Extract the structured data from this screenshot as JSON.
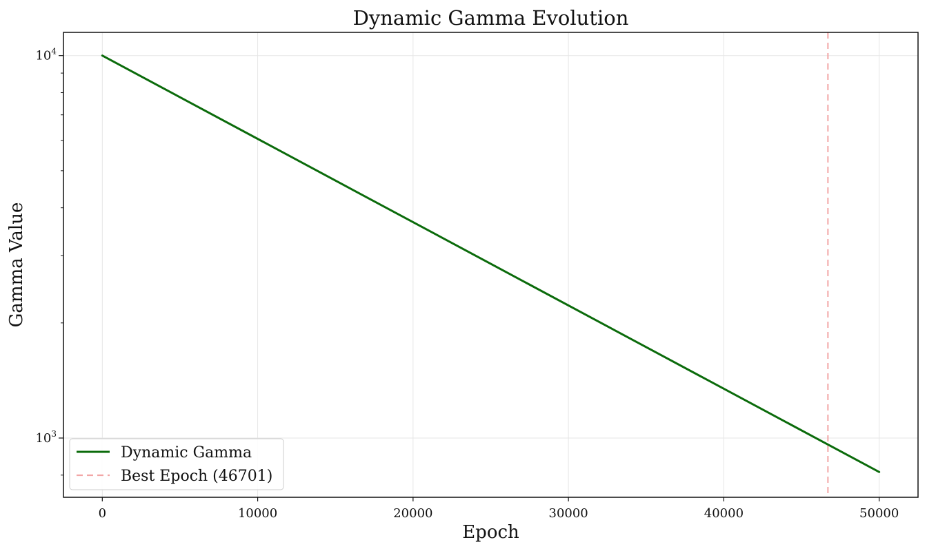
{
  "chart_data": {
    "type": "line",
    "title": "Dynamic Gamma Evolution",
    "xlabel": "Epoch",
    "ylabel": "Gamma Value",
    "xlim": [
      -2500,
      52500
    ],
    "ylim": [
      700,
      11500
    ],
    "yscale": "log",
    "grid": true,
    "legend_position": "lower-left",
    "x_ticks": [
      0,
      10000,
      20000,
      30000,
      40000,
      50000
    ],
    "x_tick_labels": [
      "0",
      "10000",
      "20000",
      "30000",
      "40000",
      "50000"
    ],
    "y_major_ticks": [
      {
        "value": 1000,
        "base": "10",
        "exp": "3"
      },
      {
        "value": 10000,
        "base": "10",
        "exp": "4"
      }
    ],
    "y_minor_ticks": [
      800,
      2000,
      3000,
      4000,
      5000,
      6000,
      7000,
      8000,
      9000
    ],
    "series": [
      {
        "name": "Dynamic Gamma",
        "style": "solid",
        "color": "#0b6b0b",
        "x": [
          0,
          50000
        ],
        "y": [
          10000,
          815
        ]
      }
    ],
    "annotations": [
      {
        "type": "vline",
        "name": "Best Epoch (46701)",
        "x": 46701,
        "style": "dashed",
        "color": "#f2a6a6"
      }
    ]
  }
}
